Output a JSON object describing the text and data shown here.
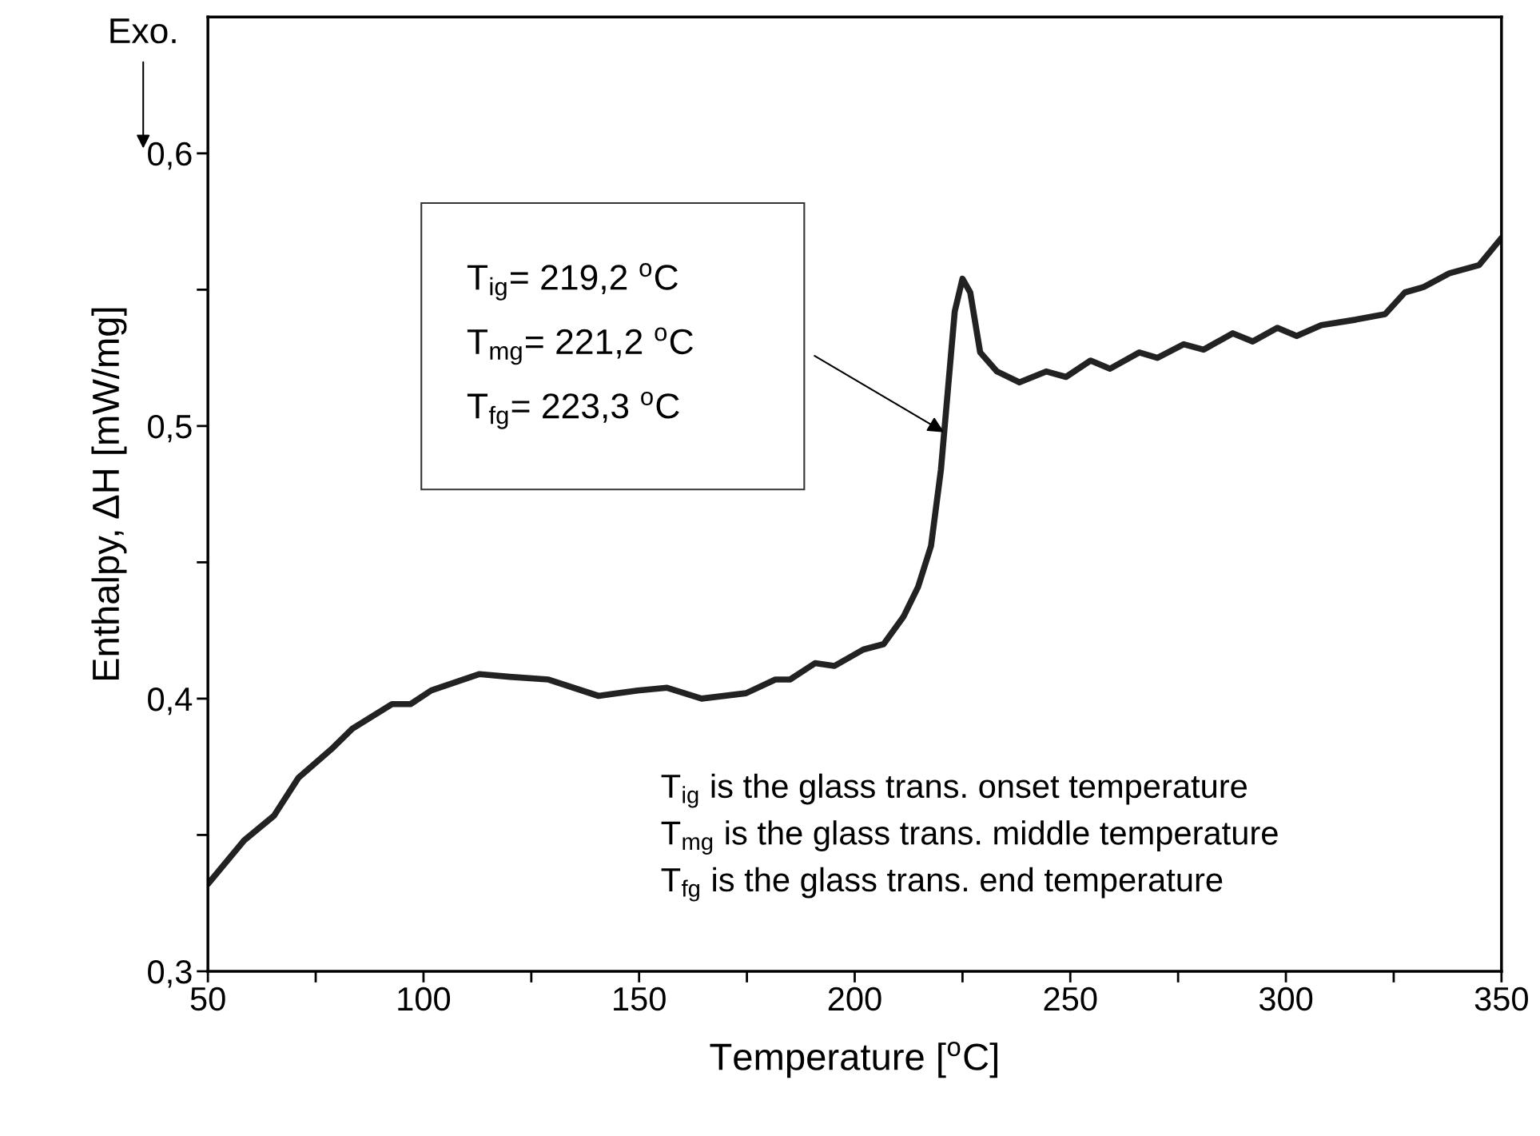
{
  "chart_data": {
    "type": "line",
    "xlabel": "Temperature [$^{o}$C]",
    "ylabel": "Enthalpy, ΔH [mW/mg]",
    "xlim": [
      50,
      350
    ],
    "ylim": [
      0.3,
      0.65
    ],
    "xticks": [
      50,
      {
        "value": 75,
        "label": null
      },
      100,
      {
        "value": 125,
        "label": null
      },
      150,
      {
        "value": 175,
        "label": null
      },
      200,
      {
        "value": 225,
        "label": null
      },
      250,
      {
        "value": 275,
        "label": null
      },
      300,
      {
        "value": 325,
        "label": null
      },
      350
    ],
    "yticks": [
      {
        "value": 0.3,
        "label": "0,3"
      },
      {
        "value": 0.35,
        "label": null
      },
      {
        "value": 0.4,
        "label": "0,4"
      },
      {
        "value": 0.45,
        "label": null
      },
      {
        "value": 0.5,
        "label": "0,5"
      },
      {
        "value": 0.55,
        "label": null
      },
      {
        "value": 0.6,
        "label": "0,6"
      }
    ],
    "grid": false,
    "marker": "none",
    "line_style": "solid",
    "annotations": [
      "Exo.",
      "T$_{ig}$= 219,2 $^{o}$C\nT$_{mg}$= 221,2 $^{o}$C\nT$_{fg}$= 223,3 $^{o}$C",
      "T$_{ig}$ is the glass trans. onset temperature\nT$_{mg}$ is the glass trans. middle temperature\nT$_{fg}$ is the glass trans. end temperature"
    ],
    "series": [
      {
        "color": "#222222",
        "x": [
          50,
          58.4,
          65.3,
          71,
          79,
          83.5,
          92.7,
          97,
          101.8,
          113,
          120,
          129,
          140.6,
          149.7,
          156.5,
          164.5,
          174.8,
          181.6,
          185,
          190.8,
          195.3,
          202,
          206.7,
          211.3,
          214.7,
          217.7,
          220,
          221.6,
          223.2,
          225,
          226.8,
          229.1,
          233,
          238.2,
          244.4,
          249,
          254.7,
          259.2,
          266,
          270.2,
          276.3,
          280.9,
          287.7,
          292.3,
          298,
          302.5,
          308.2,
          316.2,
          323,
          327.6,
          332,
          337.9,
          344.8,
          350
        ],
        "values": [
          0.332,
          0.348,
          0.357,
          0.371,
          0.382,
          0.389,
          0.398,
          0.398,
          0.403,
          0.409,
          0.408,
          0.407,
          0.401,
          0.403,
          0.404,
          0.4,
          0.402,
          0.407,
          0.407,
          0.413,
          0.412,
          0.418,
          0.42,
          0.43,
          0.441,
          0.456,
          0.484,
          0.513,
          0.542,
          0.554,
          0.549,
          0.527,
          0.52,
          0.516,
          0.52,
          0.518,
          0.524,
          0.521,
          0.527,
          0.525,
          0.53,
          0.528,
          0.534,
          0.531,
          0.536,
          0.533,
          0.537,
          0.539,
          0.541,
          0.549,
          0.551,
          0.556,
          0.559,
          0.569
        ]
      }
    ]
  }
}
